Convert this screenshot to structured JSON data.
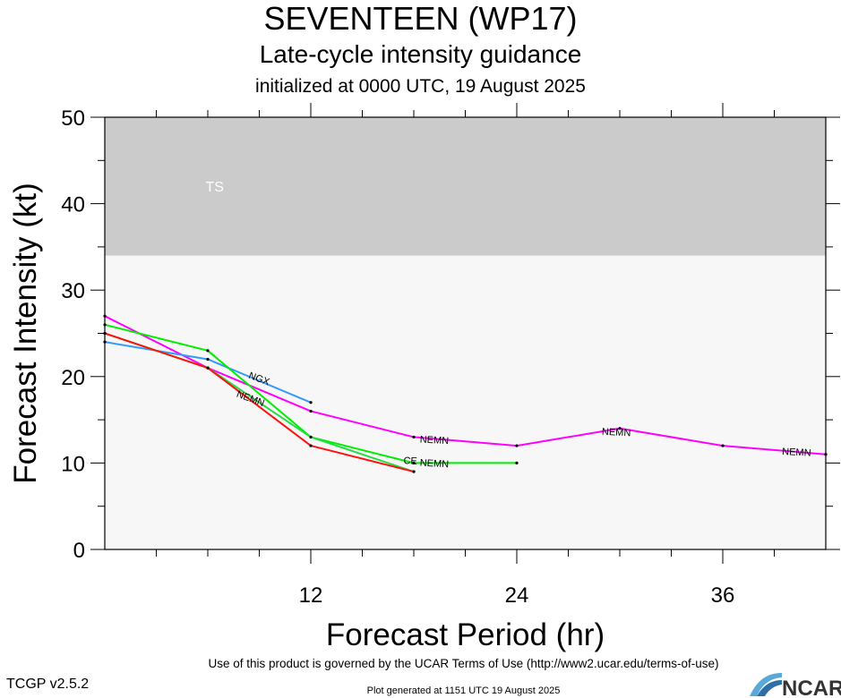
{
  "header": {
    "title": "SEVENTEEN (WP17)",
    "subtitle": "Late-cycle intensity guidance",
    "init": "initialized at 0000 UTC, 19 August 2025"
  },
  "footer": {
    "terms": "Use of this product is governed by the UCAR Terms of Use (http://www2.ucar.edu/terms-of-use)",
    "version": "TCGP v2.5.2",
    "generated": "Plot generated at 1151 UTC   19 August 2025",
    "logo_text": "NCAR"
  },
  "chart_data": {
    "type": "line",
    "title": "SEVENTEEN (WP17)",
    "subtitle": "Late-cycle intensity guidance",
    "xlabel": "Forecast Period (hr)",
    "ylabel": "Forecast Intensity (kt)",
    "xlim": [
      0,
      42
    ],
    "ylim": [
      0,
      50
    ],
    "xticks": [
      12,
      24,
      36
    ],
    "yticks": [
      0,
      10,
      20,
      30,
      40,
      50
    ],
    "bands": [
      {
        "label": "TS",
        "from": 34,
        "to": 50,
        "color": "#cbcbcb"
      }
    ],
    "plot_background": "#f7f7f7",
    "series": [
      {
        "name": "NEMN",
        "color": "#ff00ff",
        "x": [
          0,
          6,
          12,
          18,
          24,
          30,
          36,
          42
        ],
        "y": [
          27,
          21,
          16,
          13,
          12,
          14,
          12,
          11
        ]
      },
      {
        "name": "NGX",
        "color": "#3399ff",
        "x": [
          0,
          6,
          12
        ],
        "y": [
          24,
          22,
          17
        ]
      },
      {
        "name": "",
        "color": "#00ee00",
        "x": [
          0,
          6,
          12,
          18,
          24
        ],
        "y": [
          26,
          23,
          13,
          10,
          10
        ]
      },
      {
        "name": "",
        "color": "#22dd44",
        "x": [
          0,
          6,
          12,
          18
        ],
        "y": [
          25,
          21,
          13,
          9
        ]
      },
      {
        "name": "",
        "color": "#ff1111",
        "x": [
          0,
          6,
          12,
          18
        ],
        "y": [
          25,
          21,
          12,
          9
        ]
      }
    ],
    "annotations": [
      {
        "text": "NGX",
        "x": 9,
        "y": 19.8
      },
      {
        "text": "NEMN",
        "x": 8.5,
        "y": 17.5
      },
      {
        "text": "NEMN",
        "x": 19.2,
        "y": 12.7
      },
      {
        "text": "NEMN",
        "x": 29.8,
        "y": 13.6
      },
      {
        "text": "NEMN",
        "x": 40.3,
        "y": 11.3
      },
      {
        "text": "NEMN",
        "x": 19.2,
        "y": 10.0
      },
      {
        "text": "CE",
        "x": 17.8,
        "y": 10.3
      }
    ]
  }
}
